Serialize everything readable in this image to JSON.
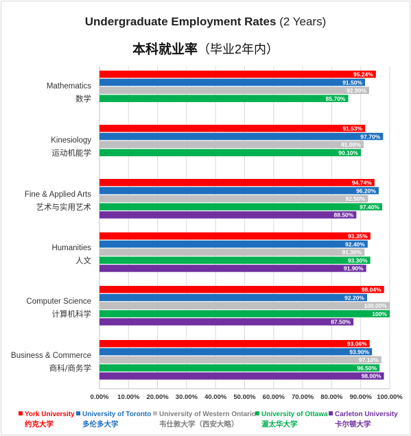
{
  "title_en_bold": "Undergraduate Employment Rates",
  "title_en_rest": "(2 Years)",
  "title_zh_bold": "本科就业率",
  "title_zh_rest": "（毕业2年内）",
  "colors": {
    "york": "#ff0000",
    "toronto": "#1f6fbf",
    "western": "#bfbfbf",
    "ottawa": "#00b050",
    "carleton": "#7030a0",
    "grid": "#d9d9d9",
    "axis": "#bfbfbf"
  },
  "legend": [
    {
      "name": "York University",
      "zh": "约克大学",
      "color": "#ff0000",
      "text_color": "#ff0000"
    },
    {
      "name": "University of Toronto",
      "zh": "多伦多大学",
      "color": "#1f6fbf",
      "text_color": "#1f6fbf"
    },
    {
      "name": "University of Western Ontario",
      "zh": "韦仕敦大学（西安大略）",
      "color": "#bfbfbf",
      "text_color": "#7f7f7f"
    },
    {
      "name": "University of Ottawa",
      "zh": "渥太华大学",
      "color": "#00b050",
      "text_color": "#00b050"
    },
    {
      "name": "Carleton University",
      "zh": "卡尔顿大学",
      "color": "#7030a0",
      "text_color": "#7030a0"
    }
  ],
  "chart_data": {
    "type": "bar",
    "orientation": "horizontal",
    "title": "Undergraduate Employment Rates (2 Years)",
    "subtitle": "本科就业率（毕业2年内）",
    "xlim": [
      0,
      100
    ],
    "x_ticks": [
      "0.00%",
      "10.00%",
      "20.00%",
      "30.00%",
      "40.00%",
      "50.00%",
      "60.00%",
      "70.00%",
      "80.00%",
      "90.00%",
      "100.00%"
    ],
    "grid": true,
    "legend_position": "bottom",
    "categories": [
      {
        "en": "Mathematics",
        "zh": "数学"
      },
      {
        "en": "Kinesiology",
        "zh": "运动机能学"
      },
      {
        "en": "Fine & Applied Arts",
        "zh": "艺术与实用艺术"
      },
      {
        "en": "Humanities",
        "zh": "人文"
      },
      {
        "en": "Computer Science",
        "zh": "计算机科学"
      },
      {
        "en": "Business & Commerce",
        "zh": "商科/商务学"
      }
    ],
    "series": [
      {
        "name": "York University",
        "key": "york",
        "values": [
          95.24,
          91.53,
          94.74,
          93.35,
          98.04,
          93.06
        ],
        "labels": [
          "95.24%",
          "91.53%",
          "94.74%",
          "93.35%",
          "98.04%",
          "93.06%"
        ]
      },
      {
        "name": "University of Toronto",
        "key": "toronto",
        "values": [
          91.5,
          97.7,
          96.2,
          92.4,
          92.2,
          93.9
        ],
        "labels": [
          "91.50%",
          "97.70%",
          "96.20%",
          "92.40%",
          "92.20%",
          "93.90%"
        ]
      },
      {
        "name": "University of Western Ontario",
        "key": "western",
        "values": [
          92.9,
          91.0,
          92.5,
          91.3,
          100.0,
          97.1
        ],
        "labels": [
          "92.90%",
          "91.00%",
          "92.50%",
          "91.30%",
          "100.00%",
          "97.10%"
        ]
      },
      {
        "name": "University of Ottawa",
        "key": "ottawa",
        "values": [
          85.7,
          90.1,
          97.4,
          93.3,
          100,
          96.5
        ],
        "labels": [
          "85.70%",
          "90.10%",
          "97.40%",
          "93.30%",
          "100%",
          "96.50%"
        ]
      },
      {
        "name": "Carleton University",
        "key": "carleton",
        "values": [
          null,
          null,
          88.5,
          91.9,
          87.5,
          98.0
        ],
        "labels": [
          null,
          null,
          "88.50%",
          "91.90%",
          "87.50%",
          "98.00%"
        ]
      }
    ]
  }
}
